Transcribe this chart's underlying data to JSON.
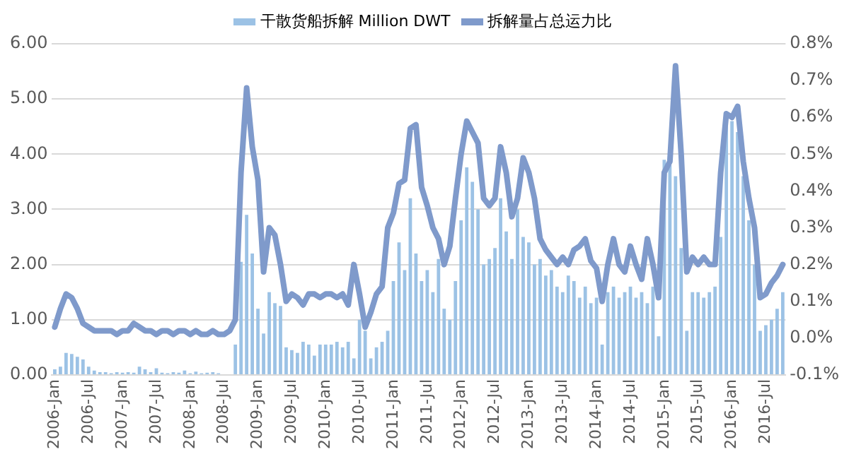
{
  "chart_data": {
    "type": "bar",
    "categories": [
      "2006-Jan",
      null,
      null,
      null,
      null,
      null,
      "2006-Jul",
      null,
      null,
      null,
      null,
      null,
      "2007-Jan",
      null,
      null,
      null,
      null,
      null,
      "2007-Jul",
      null,
      null,
      null,
      null,
      null,
      "2008-Jan",
      null,
      null,
      null,
      null,
      null,
      "2008-Jul",
      null,
      null,
      null,
      null,
      null,
      "2009-Jan",
      null,
      null,
      null,
      null,
      null,
      "2009-Jul",
      null,
      null,
      null,
      null,
      null,
      "2010-Jan",
      null,
      null,
      null,
      null,
      null,
      "2010-Jul",
      null,
      null,
      null,
      null,
      null,
      "2011-Jan",
      null,
      null,
      null,
      null,
      null,
      "2011-Jul",
      null,
      null,
      null,
      null,
      null,
      "2012-Jan",
      null,
      null,
      null,
      null,
      null,
      "2012-Jul",
      null,
      null,
      null,
      null,
      null,
      "2013-Jan",
      null,
      null,
      null,
      null,
      null,
      "2013-Jul",
      null,
      null,
      null,
      null,
      null,
      "2014-Jan",
      null,
      null,
      null,
      null,
      null,
      "2014-Jul",
      null,
      null,
      null,
      null,
      null,
      "2015-Jan",
      null,
      null,
      null,
      null,
      null,
      "2015-Jul",
      null,
      null,
      null,
      null,
      null,
      "2016-Jan",
      null,
      null,
      null,
      null,
      null,
      "2016-Jul",
      null,
      null,
      null
    ],
    "series": [
      {
        "name": "干散货船拆解 Million DWT",
        "color": "#9cc2e5",
        "values": [
          0.1,
          0.15,
          0.4,
          0.38,
          0.33,
          0.28,
          0.15,
          0.08,
          0.05,
          0.05,
          0.03,
          0.05,
          0.04,
          0.05,
          0.04,
          0.15,
          0.1,
          0.05,
          0.12,
          0.04,
          0.03,
          0.05,
          0.04,
          0.08,
          0.03,
          0.06,
          0.03,
          0.04,
          0.05,
          0.03,
          null,
          null,
          0.55,
          2.05,
          2.9,
          2.2,
          1.2,
          0.75,
          1.5,
          1.3,
          1.25,
          0.5,
          0.45,
          0.4,
          0.6,
          0.55,
          0.35,
          0.55,
          0.55,
          0.55,
          0.6,
          0.5,
          0.6,
          0.3,
          1.0,
          0.8,
          0.3,
          0.5,
          0.6,
          0.8,
          1.7,
          2.4,
          1.9,
          3.2,
          2.2,
          1.7,
          1.9,
          1.5,
          2.1,
          1.2,
          1.0,
          1.7,
          2.8,
          3.76,
          3.5,
          3.0,
          2.0,
          2.1,
          2.3,
          3.2,
          2.6,
          2.1,
          3.0,
          2.5,
          2.4,
          2.0,
          2.1,
          1.8,
          1.9,
          1.6,
          1.5,
          1.8,
          1.7,
          1.4,
          1.6,
          1.3,
          1.4,
          0.55,
          1.5,
          1.6,
          1.4,
          1.5,
          1.6,
          1.4,
          1.5,
          1.3,
          1.6,
          0.7,
          3.9,
          3.8,
          3.6,
          2.3,
          0.8,
          1.5,
          1.5,
          1.4,
          1.5,
          1.6,
          2.5,
          4.5,
          4.6,
          4.4,
          3.6,
          2.8,
          2.0,
          0.8,
          0.9,
          1.0,
          1.2,
          1.5
        ]
      },
      {
        "name": "拆解量占总运力比",
        "type": "line",
        "axis": "y2",
        "color": "#7f9acb",
        "values": [
          0.03,
          0.08,
          0.12,
          0.11,
          0.08,
          0.04,
          0.03,
          0.02,
          0.02,
          0.02,
          0.02,
          0.01,
          0.02,
          0.02,
          0.04,
          0.03,
          0.02,
          0.02,
          0.01,
          0.02,
          0.02,
          0.01,
          0.02,
          0.02,
          0.01,
          0.02,
          0.01,
          0.01,
          0.02,
          0.01,
          0.01,
          0.02,
          0.05,
          0.45,
          0.68,
          0.52,
          0.43,
          0.18,
          0.3,
          0.28,
          0.2,
          0.1,
          0.12,
          0.11,
          0.09,
          0.12,
          0.12,
          0.11,
          0.12,
          0.12,
          0.11,
          0.12,
          0.09,
          0.2,
          0.12,
          0.03,
          0.07,
          0.12,
          0.14,
          0.3,
          0.34,
          0.42,
          0.43,
          0.57,
          0.58,
          0.41,
          0.36,
          0.3,
          0.27,
          0.2,
          0.25,
          0.38,
          0.5,
          0.59,
          0.56,
          0.53,
          0.38,
          0.36,
          0.38,
          0.52,
          0.45,
          0.33,
          0.38,
          0.49,
          0.45,
          0.38,
          0.27,
          0.24,
          0.22,
          0.2,
          0.22,
          0.2,
          0.24,
          0.25,
          0.27,
          0.21,
          0.19,
          0.1,
          0.2,
          0.27,
          0.2,
          0.18,
          0.25,
          0.2,
          0.16,
          0.27,
          0.2,
          0.11,
          0.45,
          0.48,
          0.74,
          0.5,
          0.18,
          0.22,
          0.2,
          0.22,
          0.2,
          0.2,
          0.45,
          0.61,
          0.6,
          0.63,
          0.48,
          0.38,
          0.3,
          0.11,
          0.12,
          0.15,
          0.17,
          0.2
        ]
      }
    ],
    "ylim": [
      0,
      6
    ],
    "yticks": [
      {
        "value": 0,
        "label": "0.00"
      },
      {
        "value": 1,
        "label": "1.00"
      },
      {
        "value": 2,
        "label": "2.00"
      },
      {
        "value": 3,
        "label": "3.00"
      },
      {
        "value": 4,
        "label": "4.00"
      },
      {
        "value": 5,
        "label": "5.00"
      },
      {
        "value": 6,
        "label": "6.00"
      }
    ],
    "y2lim": [
      -0.1,
      0.8
    ],
    "y2ticks": [
      {
        "value": -0.1,
        "label": "-0.1%"
      },
      {
        "value": 0,
        "label": "0.0%"
      },
      {
        "value": 0.1,
        "label": "0.1%"
      },
      {
        "value": 0.2,
        "label": "0.2%"
      },
      {
        "value": 0.3,
        "label": "0.3%"
      },
      {
        "value": 0.4,
        "label": "0.4%"
      },
      {
        "value": 0.5,
        "label": "0.5%"
      },
      {
        "value": 0.6,
        "label": "0.6%"
      },
      {
        "value": 0.7,
        "label": "0.7%"
      },
      {
        "value": 0.8,
        "label": "0.8%"
      }
    ],
    "grid": "y",
    "legend": "top",
    "marker": "none",
    "line_style": "solid"
  }
}
